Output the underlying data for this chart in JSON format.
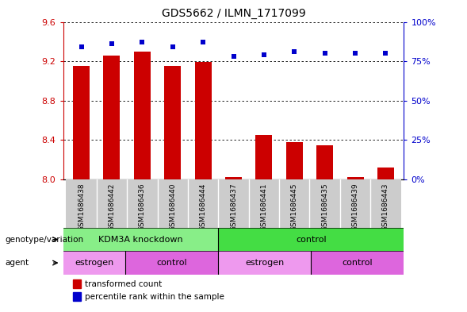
{
  "title": "GDS5662 / ILMN_1717099",
  "samples": [
    "GSM1686438",
    "GSM1686442",
    "GSM1686436",
    "GSM1686440",
    "GSM1686444",
    "GSM1686437",
    "GSM1686441",
    "GSM1686445",
    "GSM1686435",
    "GSM1686439",
    "GSM1686443"
  ],
  "bar_values": [
    9.15,
    9.26,
    9.3,
    9.15,
    9.19,
    8.02,
    8.45,
    8.38,
    8.35,
    8.02,
    8.12
  ],
  "dot_values": [
    84,
    86,
    87,
    84,
    87,
    78,
    79,
    81,
    80,
    80,
    80
  ],
  "ylim_left": [
    8.0,
    9.6
  ],
  "ylim_right": [
    0,
    100
  ],
  "yticks_left": [
    8.0,
    8.4,
    8.8,
    9.2,
    9.6
  ],
  "yticks_right": [
    0,
    25,
    50,
    75,
    100
  ],
  "bar_color": "#cc0000",
  "dot_color": "#0000cc",
  "bar_width": 0.55,
  "genotype_groups": [
    {
      "label": "KDM3A knockdown",
      "start": 0,
      "end": 5,
      "color": "#88ee88"
    },
    {
      "label": "control",
      "start": 5,
      "end": 11,
      "color": "#44dd44"
    }
  ],
  "agent_groups": [
    {
      "label": "estrogen",
      "start": 0,
      "end": 2,
      "color": "#ee99ee"
    },
    {
      "label": "control",
      "start": 2,
      "end": 5,
      "color": "#dd66dd"
    },
    {
      "label": "estrogen",
      "start": 5,
      "end": 8,
      "color": "#ee99ee"
    },
    {
      "label": "control",
      "start": 8,
      "end": 11,
      "color": "#dd66dd"
    }
  ],
  "legend_items": [
    {
      "label": "transformed count",
      "color": "#cc0000"
    },
    {
      "label": "percentile rank within the sample",
      "color": "#0000cc"
    }
  ],
  "left_axis_color": "#cc0000",
  "right_axis_color": "#0000cc",
  "background_color": "#ffffff",
  "plot_bg_color": "#ffffff",
  "sample_bg_color": "#cccccc",
  "genotype_label": "genotype/variation",
  "agent_label": "agent"
}
